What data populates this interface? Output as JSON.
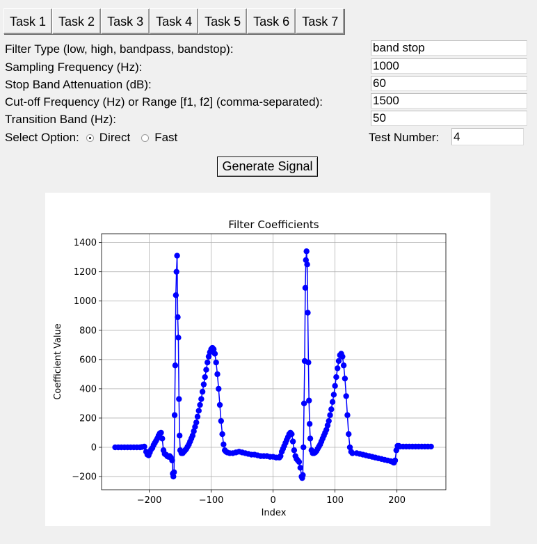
{
  "tabs": [
    "Task 1",
    "Task 2",
    "Task 3",
    "Task 4",
    "Task 5",
    "Task 6",
    "Task 7"
  ],
  "form": {
    "filter_type_label": "Filter Type (low, high, bandpass, bandstop):",
    "filter_type_value": "band stop",
    "fs_label": "Sampling Frequency (Hz):",
    "fs_value": "1000",
    "atten_label": "Stop Band Attenuation (dB):",
    "atten_value": "60",
    "cutoff_label": "Cut-off Frequency (Hz) or Range [f1, f2] (comma-separated):",
    "cutoff_value": "1500",
    "transition_label": "Transition Band (Hz):",
    "transition_value": "50",
    "option_label": "Select Option:",
    "option_direct": "Direct",
    "option_fast": "Fast",
    "selected_option": "Direct",
    "test_label": "Test Number:",
    "test_value": "4"
  },
  "generate_button": "Generate Signal",
  "chart_data": {
    "type": "line",
    "title": "Filter Coefficients",
    "xlabel": "Index",
    "ylabel": "Coefficient Value",
    "xlim": [
      -277,
      279
    ],
    "ylim": [
      -290,
      1460
    ],
    "xticks": [
      -200,
      -100,
      0,
      100,
      200
    ],
    "yticks": [
      -200,
      0,
      200,
      400,
      600,
      800,
      1000,
      1200,
      1400
    ],
    "grid": true,
    "marker": "circle",
    "color": "#0000ff",
    "series": [
      {
        "points": [
          [
            -255,
            0
          ],
          [
            -250,
            0
          ],
          [
            -245,
            0
          ],
          [
            -240,
            0
          ],
          [
            -235,
            0
          ],
          [
            -230,
            0
          ],
          [
            -225,
            0
          ],
          [
            -220,
            0
          ],
          [
            -215,
            0
          ],
          [
            -212,
            2
          ],
          [
            -208,
            5
          ],
          [
            -205,
            -30
          ],
          [
            -203,
            -50
          ],
          [
            -201,
            -55
          ],
          [
            -199,
            -35
          ],
          [
            -197,
            -15
          ],
          [
            -195,
            -5
          ],
          [
            -193,
            15
          ],
          [
            -191,
            30
          ],
          [
            -189,
            45
          ],
          [
            -187,
            60
          ],
          [
            -185,
            80
          ],
          [
            -183,
            95
          ],
          [
            -181,
            100
          ],
          [
            -179,
            60
          ],
          [
            -177,
            -20
          ],
          [
            -175,
            -45
          ],
          [
            -173,
            -50
          ],
          [
            -171,
            -60
          ],
          [
            -169,
            -65
          ],
          [
            -167,
            -60
          ],
          [
            -165,
            -70
          ],
          [
            -163,
            -90
          ],
          [
            -162,
            -180
          ],
          [
            -161,
            -200
          ],
          [
            -160,
            -170
          ],
          [
            -159,
            220
          ],
          [
            -158,
            560
          ],
          [
            -157,
            1040
          ],
          [
            -156,
            1200
          ],
          [
            -155,
            1310
          ],
          [
            -154,
            890
          ],
          [
            -153,
            750
          ],
          [
            -152,
            330
          ],
          [
            -151,
            80
          ],
          [
            -150,
            -20
          ],
          [
            -148,
            -40
          ],
          [
            -146,
            -40
          ],
          [
            -144,
            -30
          ],
          [
            -142,
            -20
          ],
          [
            -140,
            -10
          ],
          [
            -138,
            5
          ],
          [
            -136,
            20
          ],
          [
            -134,
            40
          ],
          [
            -132,
            60
          ],
          [
            -130,
            80
          ],
          [
            -128,
            110
          ],
          [
            -126,
            140
          ],
          [
            -124,
            170
          ],
          [
            -122,
            210
          ],
          [
            -120,
            250
          ],
          [
            -118,
            290
          ],
          [
            -116,
            330
          ],
          [
            -114,
            380
          ],
          [
            -112,
            430
          ],
          [
            -110,
            480
          ],
          [
            -108,
            530
          ],
          [
            -106,
            580
          ],
          [
            -104,
            620
          ],
          [
            -102,
            650
          ],
          [
            -100,
            670
          ],
          [
            -98,
            680
          ],
          [
            -96,
            670
          ],
          [
            -94,
            640
          ],
          [
            -92,
            580
          ],
          [
            -90,
            500
          ],
          [
            -88,
            400
          ],
          [
            -86,
            290
          ],
          [
            -84,
            180
          ],
          [
            -82,
            90
          ],
          [
            -80,
            20
          ],
          [
            -78,
            -20
          ],
          [
            -76,
            -30
          ],
          [
            -74,
            -35
          ],
          [
            -70,
            -40
          ],
          [
            -65,
            -40
          ],
          [
            -60,
            -35
          ],
          [
            -55,
            -30
          ],
          [
            -50,
            -35
          ],
          [
            -45,
            -40
          ],
          [
            -40,
            -45
          ],
          [
            -35,
            -50
          ],
          [
            -30,
            -50
          ],
          [
            -25,
            -55
          ],
          [
            -20,
            -60
          ],
          [
            -15,
            -60
          ],
          [
            -10,
            -60
          ],
          [
            -5,
            -65
          ],
          [
            0,
            -65
          ],
          [
            5,
            -70
          ],
          [
            10,
            -70
          ],
          [
            12,
            -60
          ],
          [
            14,
            -30
          ],
          [
            16,
            -10
          ],
          [
            18,
            10
          ],
          [
            20,
            30
          ],
          [
            22,
            50
          ],
          [
            24,
            70
          ],
          [
            26,
            90
          ],
          [
            28,
            100
          ],
          [
            30,
            90
          ],
          [
            32,
            40
          ],
          [
            34,
            -20
          ],
          [
            36,
            -60
          ],
          [
            38,
            -80
          ],
          [
            40,
            -90
          ],
          [
            42,
            -100
          ],
          [
            44,
            -140
          ],
          [
            46,
            -200
          ],
          [
            47,
            -210
          ],
          [
            48,
            -190
          ],
          [
            49,
            0
          ],
          [
            50,
            300
          ],
          [
            51,
            590
          ],
          [
            52,
            1090
          ],
          [
            53,
            1280
          ],
          [
            54,
            1340
          ],
          [
            55,
            1250
          ],
          [
            56,
            920
          ],
          [
            57,
            580
          ],
          [
            58,
            320
          ],
          [
            59,
            160
          ],
          [
            60,
            60
          ],
          [
            62,
            -20
          ],
          [
            64,
            -40
          ],
          [
            66,
            -40
          ],
          [
            68,
            -35
          ],
          [
            70,
            -25
          ],
          [
            72,
            -10
          ],
          [
            74,
            5
          ],
          [
            76,
            20
          ],
          [
            78,
            40
          ],
          [
            80,
            60
          ],
          [
            82,
            80
          ],
          [
            84,
            100
          ],
          [
            86,
            120
          ],
          [
            88,
            150
          ],
          [
            90,
            180
          ],
          [
            92,
            220
          ],
          [
            94,
            260
          ],
          [
            96,
            310
          ],
          [
            98,
            360
          ],
          [
            100,
            420
          ],
          [
            102,
            480
          ],
          [
            104,
            540
          ],
          [
            106,
            590
          ],
          [
            108,
            630
          ],
          [
            110,
            640
          ],
          [
            112,
            620
          ],
          [
            114,
            560
          ],
          [
            116,
            470
          ],
          [
            118,
            350
          ],
          [
            120,
            220
          ],
          [
            122,
            90
          ],
          [
            124,
            0
          ],
          [
            126,
            -30
          ],
          [
            128,
            -40
          ],
          [
            135,
            -40
          ],
          [
            140,
            -45
          ],
          [
            145,
            -50
          ],
          [
            150,
            -55
          ],
          [
            155,
            -60
          ],
          [
            160,
            -65
          ],
          [
            165,
            -70
          ],
          [
            170,
            -75
          ],
          [
            175,
            -80
          ],
          [
            180,
            -85
          ],
          [
            185,
            -90
          ],
          [
            190,
            -95
          ],
          [
            193,
            -100
          ],
          [
            195,
            -105
          ],
          [
            197,
            -90
          ],
          [
            199,
            -20
          ],
          [
            201,
            10
          ],
          [
            203,
            10
          ],
          [
            205,
            5
          ],
          [
            210,
            5
          ],
          [
            215,
            5
          ],
          [
            220,
            5
          ],
          [
            225,
            5
          ],
          [
            230,
            5
          ],
          [
            235,
            5
          ],
          [
            240,
            5
          ],
          [
            245,
            5
          ],
          [
            250,
            5
          ],
          [
            255,
            5
          ]
        ]
      }
    ]
  }
}
